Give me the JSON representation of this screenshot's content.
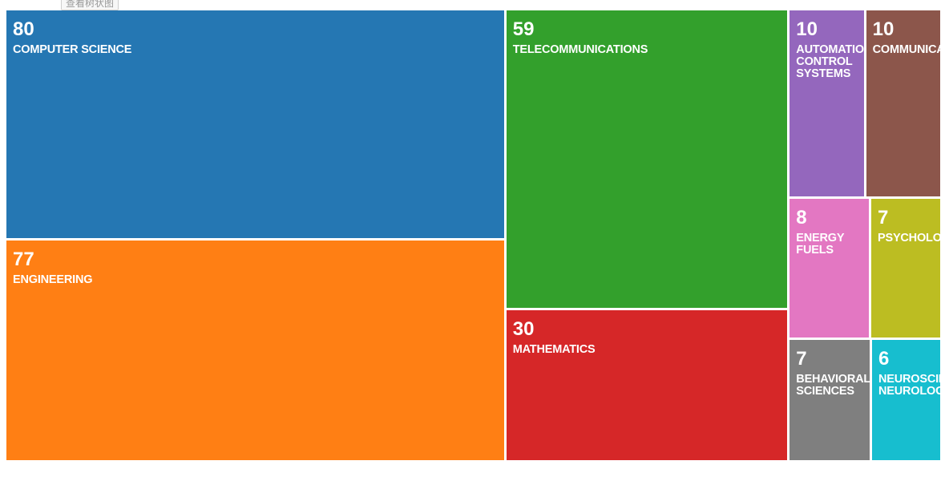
{
  "toolbar": {
    "view_tree_label": "查看树状图"
  },
  "chart_data": {
    "type": "treemap",
    "categories": [
      "COMPUTER SCIENCE",
      "ENGINEERING",
      "TELECOMMUNICATIONS",
      "MATHEMATICS",
      "AUTOMATION CONTROL SYSTEMS",
      "COMMUNICATION",
      "ENERGY FUELS",
      "PSYCHOLOGY",
      "BEHAVIORAL SCIENCES",
      "NEUROSCIENCES NEUROLOGY"
    ],
    "values": [
      80,
      77,
      59,
      30,
      10,
      10,
      8,
      7,
      7,
      6
    ],
    "colors": [
      "#2577b3",
      "#ff7f14",
      "#33a02c",
      "#d62728",
      "#9467bd",
      "#8c564b",
      "#e377c2",
      "#bcbd22",
      "#7f7f7f",
      "#17becf"
    ]
  }
}
